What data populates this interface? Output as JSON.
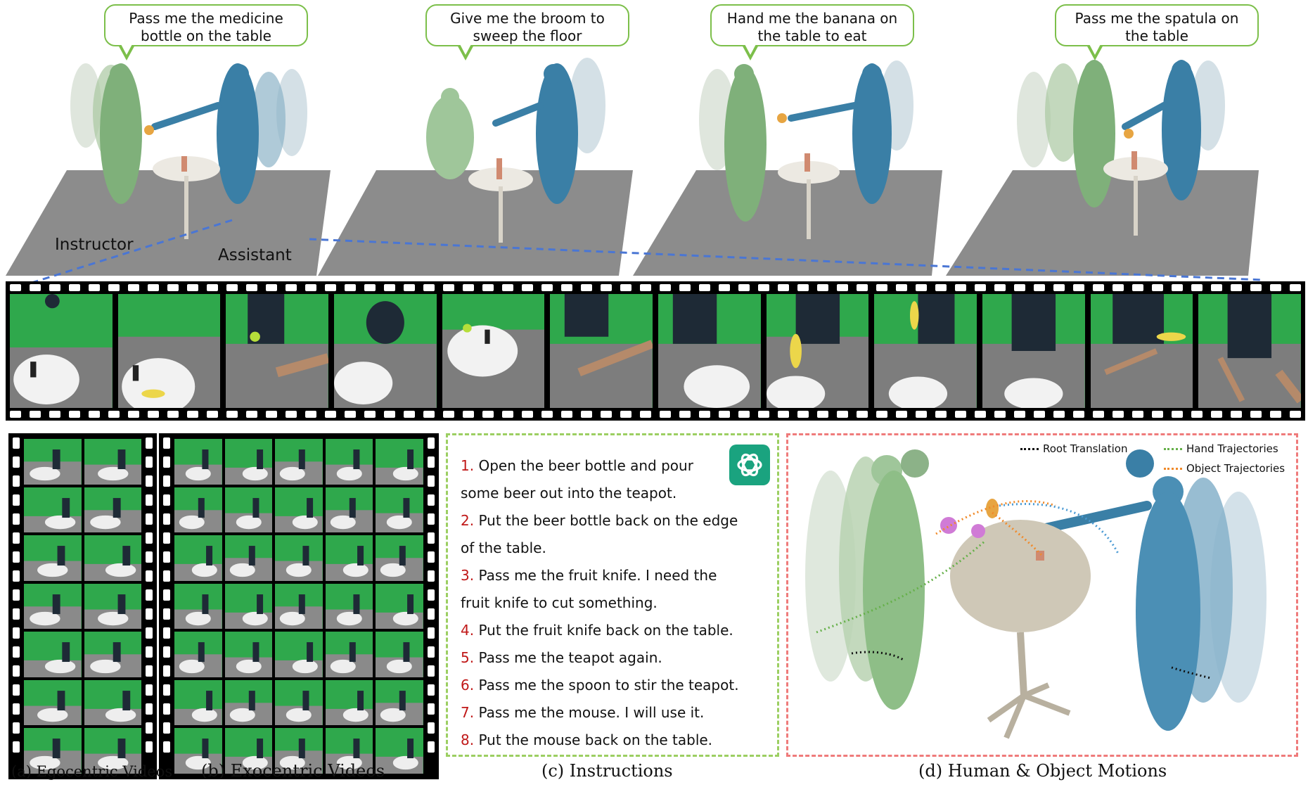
{
  "scenes": [
    {
      "bubble": "Pass me the medicine bottle on the table"
    },
    {
      "bubble": "Give me the broom to sweep the floor"
    },
    {
      "bubble": "Hand me the banana on the table to eat"
    },
    {
      "bubble": "Pass me the spatula on the table"
    }
  ],
  "labels": {
    "instructor": "Instructor",
    "assistant": "Assistant"
  },
  "instructions": [
    {
      "num": "1.",
      "text": "Open the beer bottle and pour"
    },
    {
      "num": "",
      "text": "some beer out into the teapot."
    },
    {
      "num": "2.",
      "text": "Put the beer bottle back on the edge"
    },
    {
      "num": "",
      "text": "of the table."
    },
    {
      "num": "3.",
      "text": "Pass me the fruit knife. I need the"
    },
    {
      "num": "",
      "text": "fruit knife to cut something."
    },
    {
      "num": "4.",
      "text": "Put the fruit knife back on the table."
    },
    {
      "num": "5.",
      "text": "Pass me the teapot again."
    },
    {
      "num": "6.",
      "text": "Pass me the spoon to stir the teapot."
    },
    {
      "num": "7.",
      "text": "Pass me the mouse. I will use it."
    },
    {
      "num": "8.",
      "text": "Put the mouse back on the table."
    }
  ],
  "legend": {
    "root": "Root Translation",
    "hand": "Hand Trajectories",
    "object": "Object Trajectories"
  },
  "captions": {
    "a": "(a) Egocentric Videos",
    "b": "(b) Exocentric Videos",
    "c": "(c) Instructions",
    "d": "(d) Human & Object Motions"
  },
  "colors": {
    "bubble_border": "#7cbf4a",
    "instructor": "#7fb07a",
    "assistant": "#3a7fa6",
    "floor": "#8a8a8a",
    "link": "#4a76d4",
    "instr_border": "#9ccf62",
    "motion_border": "#ef7b7b",
    "root_traj": "#111111",
    "hand_traj": "#66b04a",
    "object_traj": "#f08a2a",
    "hand_traj_blue": "#4a9ad4"
  },
  "icons": {
    "gpt": "openai-logo-icon"
  }
}
